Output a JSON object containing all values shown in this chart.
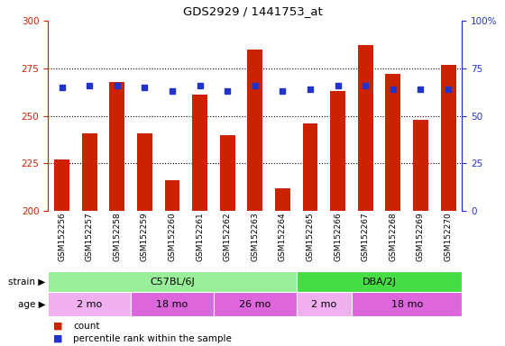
{
  "title": "GDS2929 / 1441753_at",
  "samples": [
    "GSM152256",
    "GSM152257",
    "GSM152258",
    "GSM152259",
    "GSM152260",
    "GSM152261",
    "GSM152262",
    "GSM152263",
    "GSM152264",
    "GSM152265",
    "GSM152266",
    "GSM152267",
    "GSM152268",
    "GSM152269",
    "GSM152270"
  ],
  "counts": [
    227,
    241,
    268,
    241,
    216,
    261,
    240,
    285,
    212,
    246,
    263,
    287,
    272,
    248,
    277
  ],
  "percentile": [
    65,
    66,
    66,
    65,
    63,
    66,
    63,
    66,
    63,
    64,
    66,
    66,
    64,
    64,
    64
  ],
  "ylim_left": [
    200,
    300
  ],
  "ylim_right": [
    0,
    100
  ],
  "yticks_left": [
    200,
    225,
    250,
    275,
    300
  ],
  "yticks_right": [
    0,
    25,
    50,
    75,
    100
  ],
  "bar_color": "#cc2200",
  "dot_color": "#2233cc",
  "bar_bottom": 200,
  "strain_groups": [
    {
      "label": "C57BL/6J",
      "start": 0,
      "end": 9,
      "color": "#99ee99"
    },
    {
      "label": "DBA/2J",
      "start": 9,
      "end": 15,
      "color": "#44dd44"
    }
  ],
  "age_groups": [
    {
      "label": "2 mo",
      "start": 0,
      "end": 3,
      "color": "#f0b0f0"
    },
    {
      "label": "18 mo",
      "start": 3,
      "end": 6,
      "color": "#dd66dd"
    },
    {
      "label": "26 mo",
      "start": 6,
      "end": 9,
      "color": "#dd66dd"
    },
    {
      "label": "2 mo",
      "start": 9,
      "end": 11,
      "color": "#f0b0f0"
    },
    {
      "label": "18 mo",
      "start": 11,
      "end": 15,
      "color": "#dd66dd"
    }
  ],
  "strain_label": "strain",
  "age_label": "age",
  "legend_count": "count",
  "legend_pct": "percentile rank within the sample",
  "left_axis_color": "#cc2200",
  "right_axis_color": "#2233cc",
  "xtick_bg": "#c8c8c8",
  "grid_dotted_vals": [
    225,
    250,
    275
  ]
}
